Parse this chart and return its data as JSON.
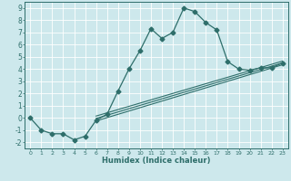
{
  "title": "",
  "xlabel": "Humidex (Indice chaleur)",
  "xlim": [
    -0.5,
    23.5
  ],
  "ylim": [
    -2.5,
    9.5
  ],
  "xticks": [
    0,
    1,
    2,
    3,
    4,
    5,
    6,
    7,
    8,
    9,
    10,
    11,
    12,
    13,
    14,
    15,
    16,
    17,
    18,
    19,
    20,
    21,
    22,
    23
  ],
  "yticks": [
    -2,
    -1,
    0,
    1,
    2,
    3,
    4,
    5,
    6,
    7,
    8,
    9
  ],
  "background_color": "#cde8ec",
  "line_color": "#2e6e6a",
  "grid_color": "#ffffff",
  "main_line": {
    "x": [
      0,
      1,
      2,
      3,
      4,
      5,
      6,
      7,
      8,
      9,
      10,
      11,
      12,
      13,
      14,
      15,
      16,
      17,
      18,
      19,
      20,
      21,
      22,
      23
    ],
    "y": [
      0.0,
      -1.0,
      -1.3,
      -1.3,
      -1.8,
      -1.5,
      -0.2,
      0.3,
      2.2,
      4.0,
      5.5,
      7.3,
      6.5,
      7.0,
      9.0,
      8.7,
      7.8,
      7.2,
      4.6,
      4.0,
      3.9,
      4.1,
      4.1,
      4.5
    ]
  },
  "diag_lines": [
    {
      "x": [
        6,
        23
      ],
      "y": [
        -0.25,
        4.35
      ]
    },
    {
      "x": [
        6,
        23
      ],
      "y": [
        -0.05,
        4.5
      ]
    },
    {
      "x": [
        6,
        23
      ],
      "y": [
        0.15,
        4.65
      ]
    }
  ]
}
